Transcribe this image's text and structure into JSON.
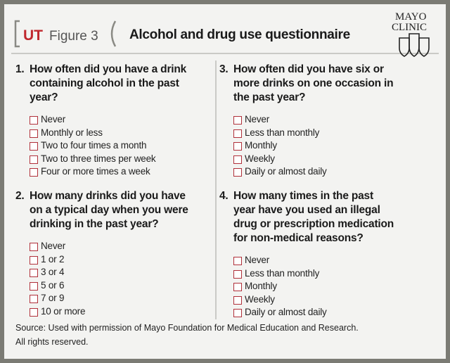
{
  "header": {
    "ut": "UT",
    "figure": "Figure 3",
    "title": "Alcohol and drug use questionnaire",
    "logo": [
      "MAYO",
      "CLINIC"
    ]
  },
  "questions": [
    {
      "number": "1.",
      "lines": [
        "How often did you have a drink",
        "containing alcohol in the past",
        "year?"
      ],
      "options": [
        "Never",
        "Monthly or less",
        "Two to four times a month",
        "Two to three times per week",
        "Four or more times a week"
      ]
    },
    {
      "number": "2.",
      "lines": [
        "How many drinks did you have",
        "on a typical day when you were",
        "drinking in the past year?"
      ],
      "options": [
        "Never",
        "1 or 2",
        "3 or 4",
        "5 or 6",
        "7 or 9",
        "10 or more"
      ]
    },
    {
      "number": "3.",
      "lines": [
        "How often did you have six or",
        "more drinks on one occasion in",
        "the past year?"
      ],
      "options": [
        "Never",
        "Less than monthly",
        "Monthly",
        "Weekly",
        "Daily or almost daily"
      ]
    },
    {
      "number": "4.",
      "lines": [
        "How many times in the past",
        "year have you used an illegal",
        "drug or prescription medication",
        "for non-medical reasons?"
      ],
      "options": [
        "Never",
        "Less than monthly",
        "Monthly",
        "Weekly",
        "Daily or almost daily"
      ]
    }
  ],
  "footer": [
    "Source: Used with permission of Mayo Foundation for Medical Education and Research.",
    "All rights reserved."
  ]
}
